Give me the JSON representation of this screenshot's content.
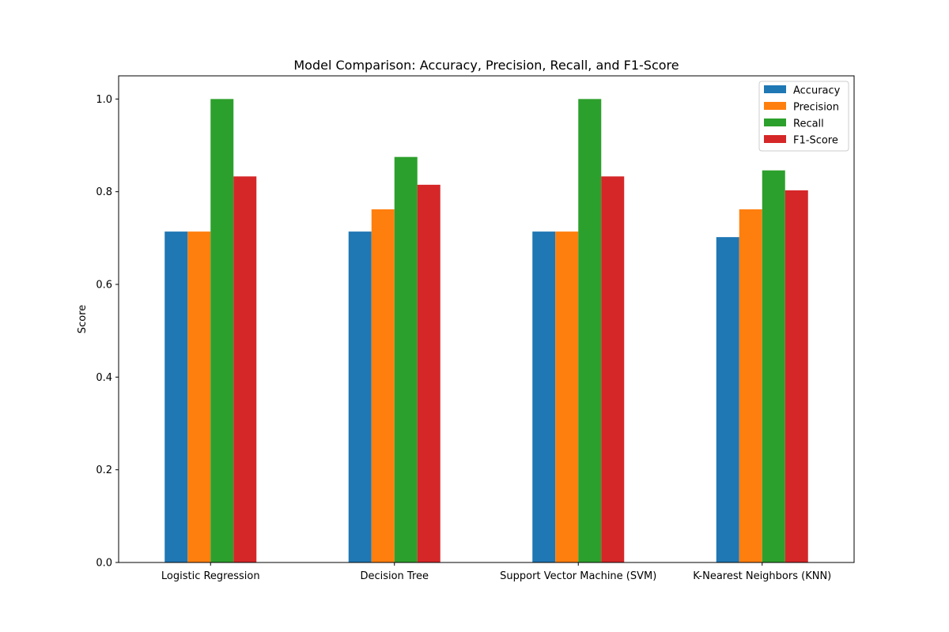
{
  "chart_data": {
    "type": "bar",
    "title": "Model Comparison: Accuracy, Precision, Recall, and F1-Score",
    "xlabel": "",
    "ylabel": "Score",
    "categories": [
      "Logistic Regression",
      "Decision Tree",
      "Support Vector Machine (SVM)",
      "K-Nearest Neighbors (KNN)"
    ],
    "series": [
      {
        "name": "Accuracy",
        "color": "#1f77b4",
        "values": [
          0.714,
          0.714,
          0.714,
          0.702
        ]
      },
      {
        "name": "Precision",
        "color": "#ff7f0e",
        "values": [
          0.714,
          0.762,
          0.714,
          0.762
        ]
      },
      {
        "name": "Recall",
        "color": "#2ca02c",
        "values": [
          1.0,
          0.875,
          1.0,
          0.846
        ]
      },
      {
        "name": "F1-Score",
        "color": "#d62728",
        "values": [
          0.833,
          0.815,
          0.833,
          0.803
        ]
      }
    ],
    "ylim": [
      0,
      1.05
    ],
    "yticks": [
      0.0,
      0.2,
      0.4,
      0.6,
      0.8,
      1.0
    ],
    "ytick_labels": [
      "0.0",
      "0.2",
      "0.4",
      "0.6",
      "0.8",
      "1.0"
    ],
    "grid": false,
    "legend_position": "top-right"
  }
}
